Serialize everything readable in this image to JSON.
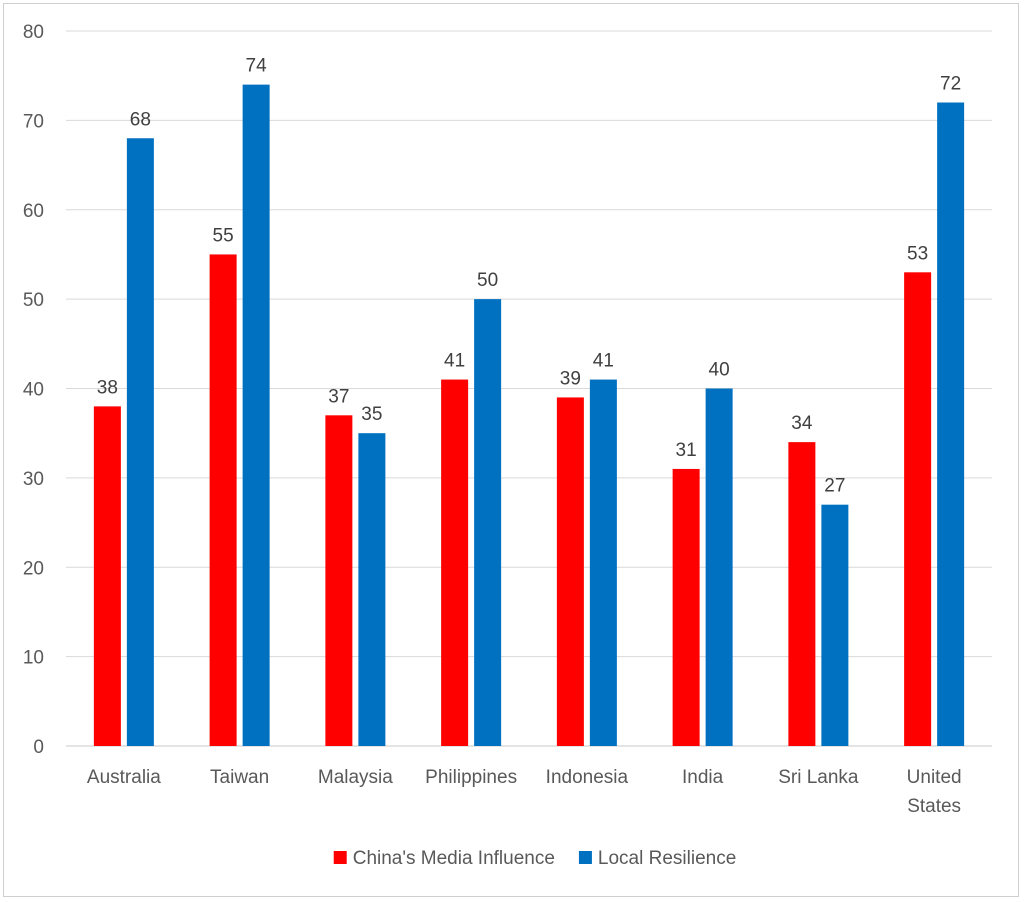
{
  "chart_data": {
    "type": "bar",
    "title": "",
    "xlabel": "",
    "ylabel": "",
    "ylim": [
      0,
      80
    ],
    "yticks": [
      0,
      10,
      20,
      30,
      40,
      50,
      60,
      70,
      80
    ],
    "grid": true,
    "legend_position": "bottom",
    "categories": [
      [
        "Australia"
      ],
      [
        "Taiwan"
      ],
      [
        "Malaysia"
      ],
      [
        "Philippines"
      ],
      [
        "Indonesia"
      ],
      [
        "India"
      ],
      [
        "Sri Lanka"
      ],
      [
        "United",
        "States"
      ]
    ],
    "series": [
      {
        "name": "China's Media Influence",
        "color": "#ff0000",
        "values": [
          38,
          55,
          37,
          41,
          39,
          31,
          34,
          53
        ]
      },
      {
        "name": "Local Resilience",
        "color": "#0070c0",
        "values": [
          68,
          74,
          35,
          50,
          41,
          40,
          27,
          72
        ]
      }
    ]
  }
}
